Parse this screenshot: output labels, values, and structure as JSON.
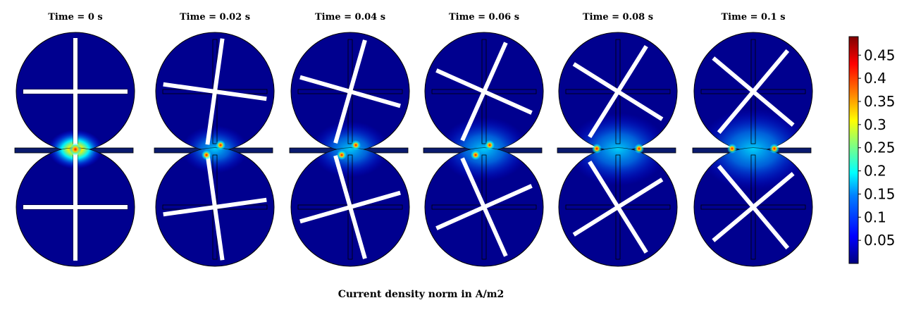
{
  "figure": {
    "caption": "Current density norm in A/m2",
    "frames": [
      {
        "title": "Time = 0 s",
        "time": 0,
        "rotation_deg": 0
      },
      {
        "title": "Time = 0.02 s",
        "time": 0.02,
        "rotation_deg": 8
      },
      {
        "title": "Time = 0.04 s",
        "time": 0.04,
        "rotation_deg": 16
      },
      {
        "title": "Time = 0.06 s",
        "time": 0.06,
        "rotation_deg": 24
      },
      {
        "title": "Time = 0.08 s",
        "time": 0.08,
        "rotation_deg": 32
      },
      {
        "title": "Time = 0.1 s",
        "time": 0.1,
        "rotation_deg": 40
      }
    ],
    "colorbar": {
      "ticks": [
        "0.45",
        "0.4",
        "0.35",
        "0.3",
        "0.25",
        "0.2",
        "0.15",
        "0.1",
        "0.05"
      ],
      "tick_values": [
        0.45,
        0.4,
        0.35,
        0.3,
        0.25,
        0.2,
        0.15,
        0.1,
        0.05
      ],
      "min": 0,
      "max": 0.49,
      "colormap": [
        "#00007f",
        "#0000ff",
        "#0080ff",
        "#00ffff",
        "#80ff80",
        "#ffff00",
        "#ff8000",
        "#ff0000",
        "#7f0000"
      ]
    },
    "colors": {
      "background_field": "#00008f",
      "electrode": "#ffffff",
      "outline": "#000000"
    }
  }
}
